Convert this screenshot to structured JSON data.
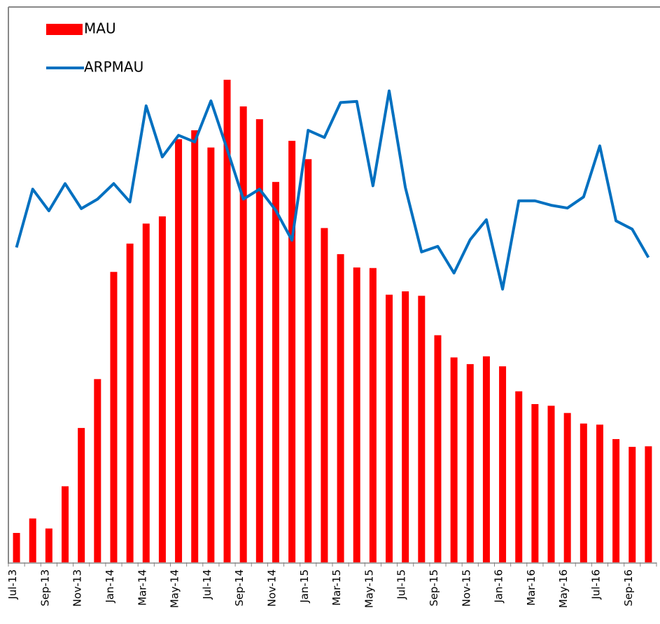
{
  "chart_data": {
    "type": "bar_line",
    "categories": [
      "Jul-13",
      null,
      "Sep-13",
      null,
      "Nov-13",
      null,
      "Jan-14",
      null,
      "Mar-14",
      null,
      "May-14",
      null,
      "Jul-14",
      null,
      "Sep-14",
      null,
      "Nov-14",
      null,
      "Jan-15",
      null,
      "Mar-15",
      null,
      "May-15",
      null,
      "Jul-15",
      null,
      "Sep-15",
      null,
      "Nov-15",
      null,
      "Jan-16",
      null,
      "Mar-16",
      null,
      "May-16",
      null,
      "Jul-16",
      null,
      "Sep-16",
      null
    ],
    "series": [
      {
        "name": "MAU",
        "color": "#ff0000",
        "kind": "bar",
        "values": [
          5.3,
          7.9,
          6.1,
          13.7,
          24.2,
          33.0,
          52.3,
          57.4,
          61.0,
          62.3,
          76.2,
          77.8,
          74.7,
          86.9,
          82.1,
          79.8,
          68.5,
          75.9,
          72.6,
          60.2,
          55.5,
          53.1,
          53.0,
          48.2,
          48.8,
          48.0,
          40.9,
          36.9,
          35.7,
          37.1,
          35.3,
          30.8,
          28.5,
          28.2,
          26.9,
          25.0,
          24.8,
          22.2,
          20.8,
          20.9
        ]
      },
      {
        "name": "ARPMAU",
        "color": "#0070c0",
        "kind": "line",
        "values": [
          56.7,
          67.2,
          63.3,
          68.2,
          63.7,
          65.4,
          68.2,
          64.9,
          82.2,
          73.0,
          76.9,
          75.7,
          83.1,
          74.4,
          65.4,
          67.2,
          63.4,
          58.0,
          77.8,
          76.5,
          82.8,
          83.0,
          67.8,
          84.9,
          67.5,
          55.9,
          56.9,
          52.1,
          58.1,
          61.7,
          49.2,
          65.1,
          65.1,
          64.3,
          63.8,
          65.8,
          75.0,
          61.5,
          60.0,
          54.9
        ]
      }
    ],
    "ylim": [
      0,
      100
    ],
    "legend": "upper left"
  }
}
